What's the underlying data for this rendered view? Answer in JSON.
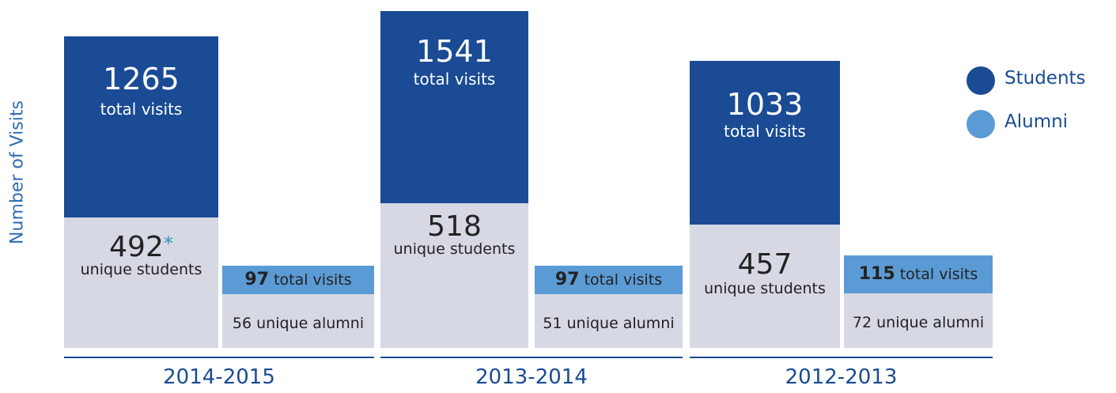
{
  "chart_data": {
    "type": "infographic",
    "y_label": "Number of Visits",
    "legend": [
      {
        "name": "Students",
        "color": "#1a4b94"
      },
      {
        "name": "Alumni",
        "color": "#5b9bd5"
      }
    ],
    "categories": [
      "2014-2015",
      "2013-2014",
      "2012-2013"
    ],
    "students_total": [
      1265,
      1541,
      1033
    ],
    "students_unique": [
      492,
      518,
      457
    ],
    "students_unique_notes": [
      "*",
      null,
      null
    ],
    "alumni_total": [
      97,
      97,
      115
    ],
    "alumni_unique": [
      56,
      51,
      72
    ],
    "total_label": "total visits",
    "unique_students_label": "unique students",
    "unique_alumni_label": "unique alumni"
  }
}
